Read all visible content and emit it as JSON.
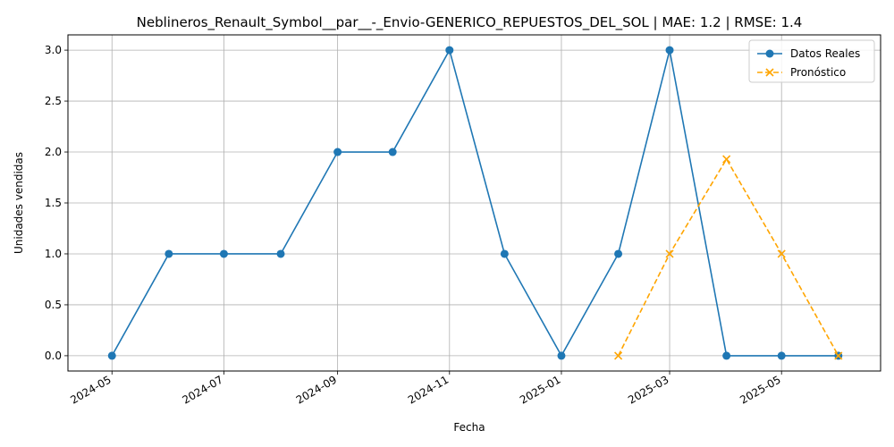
{
  "chart_data": {
    "type": "line",
    "title": "Neblineros_Renault_Symbol__par__-_Envio-GENERICO_REPUESTOS_DEL_SOL | MAE: 1.2 | RMSE: 1.4",
    "xlabel": "Fecha",
    "ylabel": "Unidades vendidas",
    "ylim": [
      -0.15,
      3.15
    ],
    "xlim": [
      "2024-04-07",
      "2025-06-24"
    ],
    "x_ticks": [
      "2024-05",
      "2024-07",
      "2024-09",
      "2024-11",
      "2025-01",
      "2025-03",
      "2025-05"
    ],
    "y_ticks": [
      "0.0",
      "0.5",
      "1.0",
      "1.5",
      "2.0",
      "2.5",
      "3.0"
    ],
    "grid": true,
    "legend_position": "top-right",
    "series": [
      {
        "name": "Datos Reales",
        "color": "#1f77b4",
        "style": "solid",
        "marker": "circle",
        "points": [
          {
            "x": "2024-05-01",
            "y": 0
          },
          {
            "x": "2024-06-01",
            "y": 1
          },
          {
            "x": "2024-07-01",
            "y": 1
          },
          {
            "x": "2024-08-01",
            "y": 1
          },
          {
            "x": "2024-09-01",
            "y": 2
          },
          {
            "x": "2024-10-01",
            "y": 2
          },
          {
            "x": "2024-11-01",
            "y": 3
          },
          {
            "x": "2024-12-01",
            "y": 1
          },
          {
            "x": "2025-01-01",
            "y": 0
          },
          {
            "x": "2025-02-01",
            "y": 1
          },
          {
            "x": "2025-03-01",
            "y": 3
          },
          {
            "x": "2025-04-01",
            "y": 0
          },
          {
            "x": "2025-05-01",
            "y": 0
          },
          {
            "x": "2025-06-01",
            "y": 0
          }
        ]
      },
      {
        "name": "Pronóstico",
        "color": "#ffa500",
        "style": "dashed",
        "marker": "x",
        "points": [
          {
            "x": "2025-02-01",
            "y": 0
          },
          {
            "x": "2025-03-01",
            "y": 1
          },
          {
            "x": "2025-04-01",
            "y": 1.93
          },
          {
            "x": "2025-05-01",
            "y": 1
          },
          {
            "x": "2025-06-01",
            "y": 0
          }
        ]
      }
    ]
  }
}
